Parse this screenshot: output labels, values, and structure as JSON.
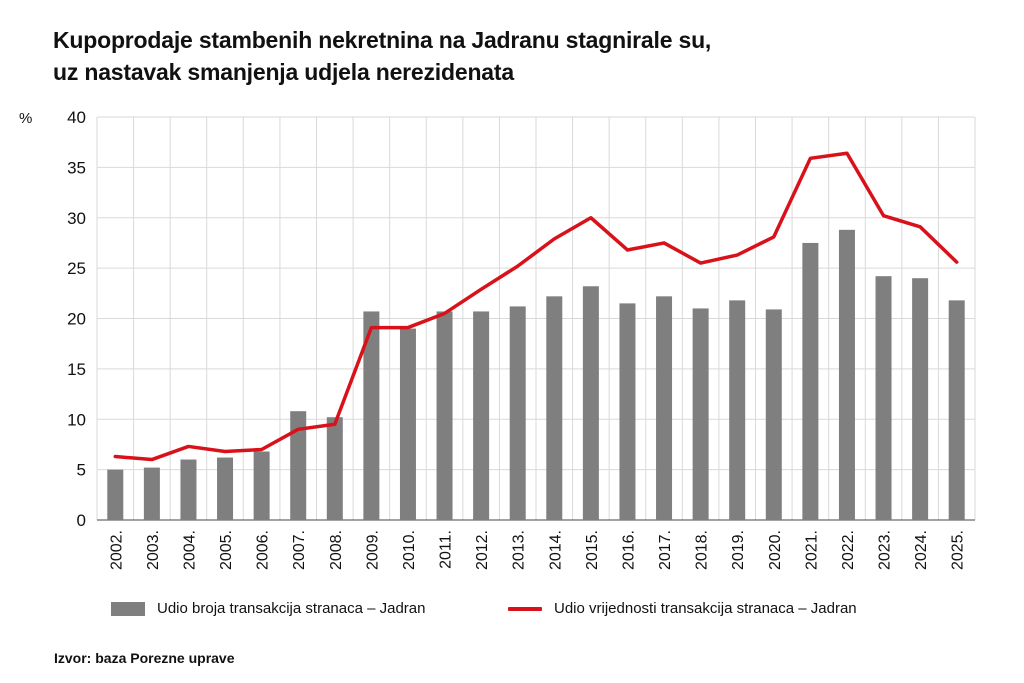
{
  "title": {
    "line1": "Kupoprodaje stambenih nekretnina na Jadranu stagnirale su,",
    "line2": "uz nastavak smanjenja udjela nerezidenata"
  },
  "unit_label": "%",
  "source": "Izvor: baza Porezne uprave",
  "colors": {
    "bar": "#7f7f7f",
    "line": "#d9111a",
    "grid": "#d9d9d9"
  },
  "chart_data": {
    "type": "bar",
    "categories": [
      "2002.",
      "2003.",
      "2004.",
      "2005.",
      "2006.",
      "2007.",
      "2008.",
      "2009.",
      "2010.",
      "2011.",
      "2012.",
      "2013.",
      "2014.",
      "2015.",
      "2016.",
      "2017.",
      "2018.",
      "2019.",
      "2020.",
      "2021.",
      "2022.",
      "2023.",
      "2024.",
      "2025."
    ],
    "series": [
      {
        "name": "Udio broja transakcija stranaca – Jadran",
        "type": "bar",
        "values": [
          5.0,
          5.2,
          6.0,
          6.2,
          6.8,
          10.8,
          10.2,
          20.7,
          19.0,
          20.7,
          20.7,
          21.2,
          22.2,
          23.2,
          21.5,
          22.2,
          21.0,
          21.8,
          20.9,
          27.5,
          28.8,
          24.2,
          24.0,
          21.8
        ]
      },
      {
        "name": "Udio vrijednosti transakcija stranaca – Jadran",
        "type": "line",
        "values": [
          6.3,
          6.0,
          7.3,
          6.8,
          7.0,
          9.0,
          9.5,
          19.1,
          19.1,
          20.5,
          22.9,
          25.2,
          27.9,
          30.0,
          26.8,
          27.5,
          25.5,
          26.3,
          28.1,
          35.9,
          36.4,
          30.2,
          29.1,
          25.6
        ]
      }
    ],
    "ylim": [
      0,
      40
    ],
    "yticks": [
      0,
      5,
      10,
      15,
      20,
      25,
      30,
      35,
      40
    ],
    "ylabel": "%",
    "grid": true,
    "legend_position": "bottom"
  }
}
